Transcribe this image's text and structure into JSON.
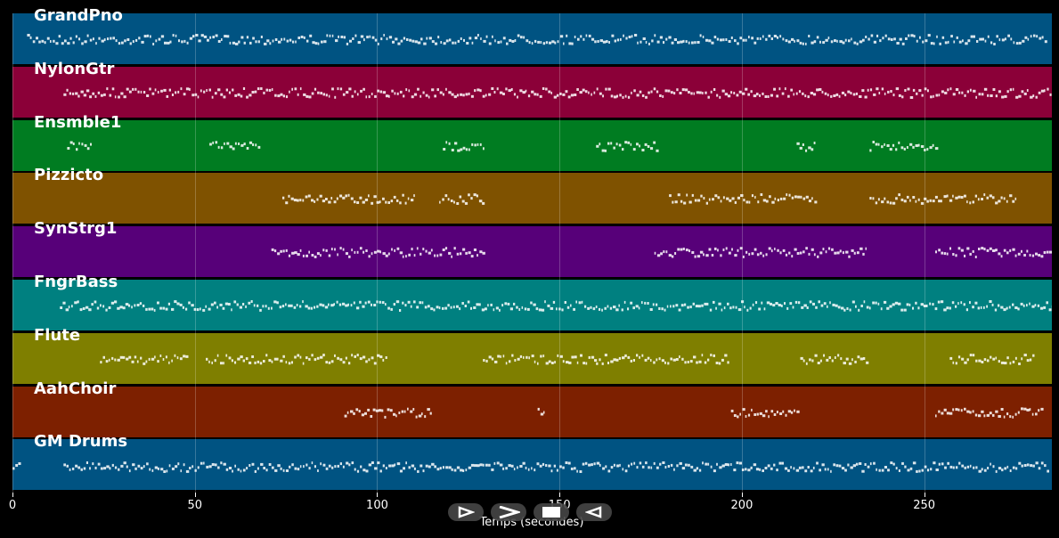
{
  "chart_data": {
    "type": "piano-roll",
    "xlabel": "Temps (secondes)",
    "xlim": [
      0,
      285
    ],
    "xticks": [
      0,
      50,
      100,
      150,
      200,
      250
    ],
    "grid": true,
    "tracks": [
      {
        "name": "GrandPno",
        "color": "#005382",
        "segments": [
          [
            4,
            283
          ]
        ]
      },
      {
        "name": "NylonGtr",
        "color": "#8b0038",
        "segments": [
          [
            14,
            285
          ]
        ]
      },
      {
        "name": "Ensmble1",
        "color": "#007c21",
        "segments": [
          [
            15,
            22
          ],
          [
            54,
            68
          ],
          [
            118,
            129
          ],
          [
            160,
            177
          ],
          [
            215,
            220
          ],
          [
            235,
            253
          ]
        ]
      },
      {
        "name": "Pizzicto",
        "color": "#7f5200",
        "segments": [
          [
            74,
            110
          ],
          [
            117,
            129
          ],
          [
            180,
            220
          ],
          [
            235,
            275
          ]
        ]
      },
      {
        "name": "SynStrg1",
        "color": "#570079",
        "segments": [
          [
            71,
            129
          ],
          [
            176,
            234
          ],
          [
            253,
            285
          ]
        ]
      },
      {
        "name": "FngrBass",
        "color": "#008080",
        "segments": [
          [
            13,
            285
          ]
        ]
      },
      {
        "name": "Flute",
        "color": "#7f7f00",
        "segments": [
          [
            24,
            48
          ],
          [
            53,
            103
          ],
          [
            129,
            160
          ],
          [
            160,
            196
          ],
          [
            216,
            234
          ],
          [
            257,
            280
          ]
        ]
      },
      {
        "name": "AahChoir",
        "color": "#7d2000",
        "segments": [
          [
            91,
            115
          ],
          [
            144,
            146
          ],
          [
            197,
            215
          ],
          [
            253,
            282
          ]
        ]
      },
      {
        "name": "GM Drums",
        "color": "#005382",
        "segments": [
          [
            0,
            2
          ],
          [
            14,
            284
          ]
        ]
      }
    ]
  },
  "controls": {
    "play_icon": "play-outline-icon",
    "forward_icon": "chevron-right-icon",
    "stop_icon": "stop-icon",
    "rewind_icon": "rewind-icon"
  }
}
